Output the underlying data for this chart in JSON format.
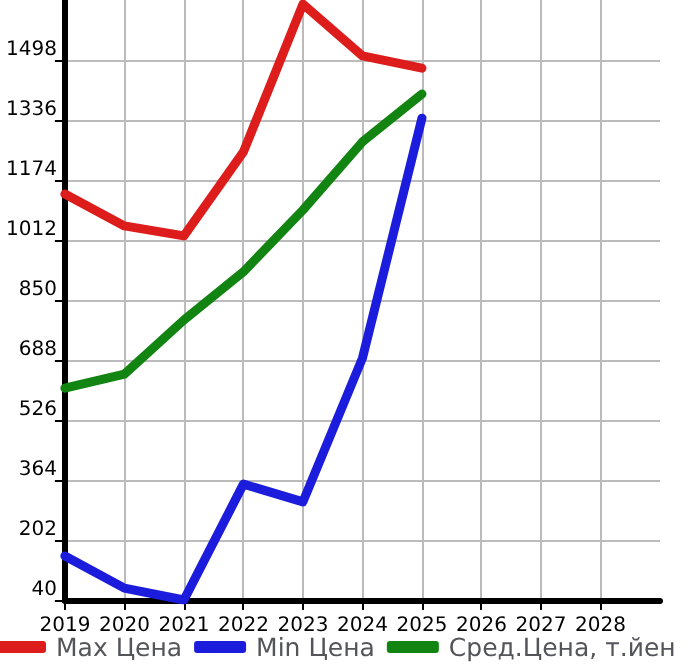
{
  "chart_data": {
    "type": "line",
    "x": [
      2019,
      2020,
      2021,
      2022,
      2023,
      2024,
      2025
    ],
    "series": [
      {
        "name": "Max Цена",
        "color": "#dd1c1c",
        "values": [
          1136,
          1050,
          1023,
          1250,
          1649,
          1509,
          1476
        ]
      },
      {
        "name": "Min Цена",
        "color": "#1c1cdd",
        "values": [
          159,
          72,
          40,
          353,
          305,
          693,
          1341
        ]
      },
      {
        "name": "Сред.Цена, т.йен",
        "color": "#118411",
        "values": [
          612,
          650,
          796,
          926,
          1093,
          1277,
          1406
        ]
      }
    ],
    "xlim": [
      2019,
      2029
    ],
    "xticks": [
      2019,
      2020,
      2021,
      2022,
      2023,
      2024,
      2025,
      2026,
      2027,
      2028
    ],
    "ylim": [
      40,
      1660
    ],
    "yticks": [
      40,
      202,
      364,
      526,
      688,
      850,
      1012,
      1174,
      1336,
      1498
    ],
    "grid": true,
    "legend": "bottom",
    "marker": "none",
    "line_style": "solid"
  }
}
